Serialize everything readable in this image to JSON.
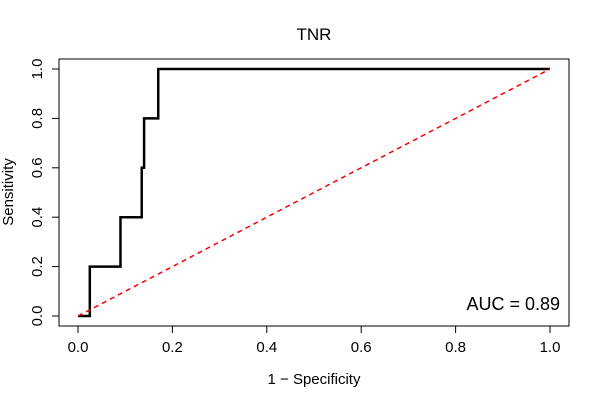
{
  "chart_data": {
    "type": "line",
    "title": "TNR",
    "xlabel": "1 − Specificity",
    "ylabel": "Sensitivity",
    "xlim": [
      0,
      1
    ],
    "ylim": [
      0,
      1
    ],
    "x_ticks": [
      "0.0",
      "0.2",
      "0.4",
      "0.6",
      "0.8",
      "1.0"
    ],
    "y_ticks": [
      "0.0",
      "0.2",
      "0.4",
      "0.6",
      "0.8",
      "1.0"
    ],
    "grid": false,
    "annotation": "AUC = 0.89",
    "series": [
      {
        "color": "#000000",
        "style": "solid",
        "x": [
          0.0,
          0.025,
          0.025,
          0.09,
          0.09,
          0.135,
          0.135,
          0.14,
          0.14,
          0.16,
          0.16,
          0.17,
          0.17,
          1.0
        ],
        "y": [
          0.0,
          0.0,
          0.2,
          0.2,
          0.4,
          0.4,
          0.6,
          0.6,
          0.8,
          0.8,
          0.8,
          0.8,
          1.0,
          1.0
        ]
      },
      {
        "color": "#ff0000",
        "style": "dashed",
        "x": [
          0.0,
          1.0
        ],
        "y": [
          0.0,
          1.0
        ]
      }
    ]
  }
}
